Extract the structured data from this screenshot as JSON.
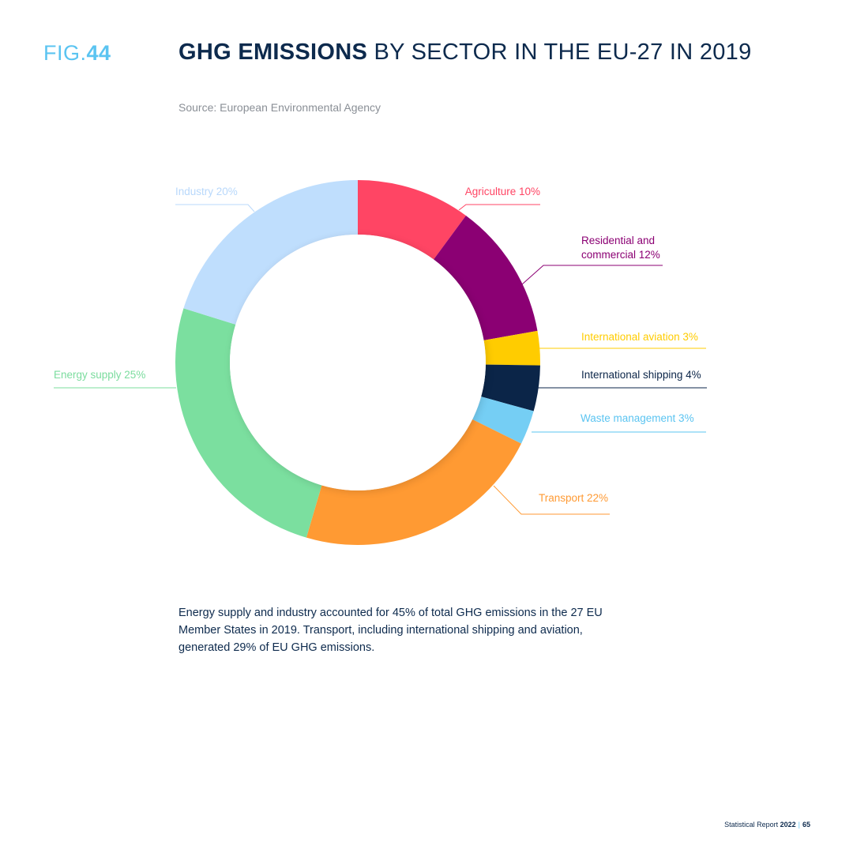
{
  "header": {
    "fig_prefix": "FIG.",
    "fig_number": "44",
    "title_bold": "GHG EMISSIONS",
    "title_rest": " BY SECTOR IN THE EU-27 IN 2019",
    "source": "Source: European Environmental Agency"
  },
  "chart_data": {
    "type": "pie",
    "variant": "donut",
    "title": "GHG EMISSIONS BY SECTOR IN THE EU-27 IN 2019",
    "categories": [
      "Agriculture",
      "Residential and commercial",
      "International aviation",
      "International shipping",
      "Waste management",
      "Transport",
      "Energy supply",
      "Industry"
    ],
    "values": [
      10,
      12,
      3,
      4,
      3,
      22,
      25,
      20
    ],
    "unit": "%",
    "labels": [
      {
        "lines": [
          "Agriculture 10%"
        ],
        "color": "#ff4564"
      },
      {
        "lines": [
          "Residential and",
          "commercial 12%"
        ],
        "color": "#8b0073"
      },
      {
        "lines": [
          "International aviation 3%"
        ],
        "color": "#ffcc00"
      },
      {
        "lines": [
          "International shipping 4%"
        ],
        "color": "#0b2548"
      },
      {
        "lines": [
          "Waste management 3%"
        ],
        "color": "#5bc4f1"
      },
      {
        "lines": [
          "Transport 22%"
        ],
        "color": "#ff9a33"
      },
      {
        "lines": [
          "Energy supply 25%"
        ],
        "color": "#7bdc9e"
      },
      {
        "lines": [
          "Industry 20%"
        ],
        "color": "#b8d8fb"
      }
    ],
    "colors": [
      "#ff4564",
      "#8b0073",
      "#ffcc00",
      "#0b2548",
      "#75cef4",
      "#ff9a33",
      "#7bdf9f",
      "#bfdefd"
    ],
    "start": "12 o'clock",
    "direction": "clockwise"
  },
  "caption": "Energy supply and industry accounted for 45% of total GHG emissions in the 27 EU Member States in 2019. Transport, including international shipping and aviation, generated 29% of EU GHG emissions.",
  "footer": {
    "report": "Statistical Report",
    "year": "2022",
    "separator": "|",
    "page": "65"
  }
}
